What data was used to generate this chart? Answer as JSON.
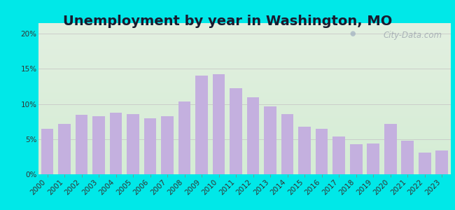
{
  "title": "Unemployment by year in Washington, MO",
  "years": [
    "2000",
    "2001",
    "2002",
    "2003",
    "2004",
    "2005",
    "2006",
    "2007",
    "2008",
    "2009",
    "2010",
    "2011",
    "2012",
    "2013",
    "2014",
    "2015",
    "2016",
    "2017",
    "2018",
    "2019",
    "2020",
    "2021",
    "2022",
    "2023"
  ],
  "values": [
    6.5,
    7.2,
    8.5,
    8.3,
    8.8,
    8.6,
    8.0,
    8.3,
    10.4,
    14.0,
    14.2,
    12.2,
    10.9,
    9.7,
    8.6,
    6.8,
    6.5,
    5.4,
    4.3,
    4.4,
    7.2,
    4.8,
    3.1,
    3.4
  ],
  "bar_color": "#c4b0df",
  "yticks": [
    0,
    5,
    10,
    15,
    20
  ],
  "ylim": [
    0,
    21.5
  ],
  "background_outer": "#00e8e8",
  "bg_top": "#e2efe0",
  "bg_bottom": "#d4ecd4",
  "grid_color": "#c8c8c8",
  "title_fontsize": 14,
  "tick_fontsize": 7.5,
  "watermark_text": "City-Data.com"
}
